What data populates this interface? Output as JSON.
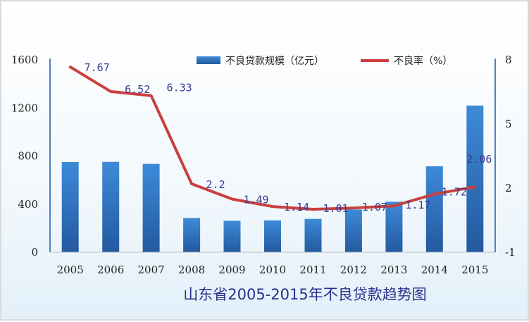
{
  "chart_data": {
    "type": "bar+line",
    "title": "山东省2005-2015年不良贷款趋势图",
    "categories": [
      "2005",
      "2006",
      "2007",
      "2008",
      "2009",
      "2010",
      "2011",
      "2012",
      "2013",
      "2014",
      "2015"
    ],
    "series": [
      {
        "name": "不良贷款规模（亿元）",
        "type": "bar",
        "axis": "left",
        "values": [
          750,
          752,
          735,
          285,
          262,
          265,
          277,
          355,
          420,
          715,
          1220
        ]
      },
      {
        "name": "不良率（%）",
        "type": "line",
        "axis": "right",
        "values": [
          7.67,
          6.52,
          6.33,
          2.2,
          1.49,
          1.14,
          1.01,
          1.07,
          1.17,
          1.72,
          2.06
        ]
      }
    ],
    "y_left": {
      "ylim": [
        0,
        1600
      ],
      "ticks": [
        "0",
        "400",
        "800",
        "1200",
        "1600"
      ]
    },
    "y_right": {
      "ylim": [
        -1,
        8
      ],
      "ticks": [
        "-1",
        "2",
        "5",
        "8"
      ]
    },
    "line_labels": [
      "7.67",
      "6.52",
      "6.33",
      "2.2",
      "1.49",
      "1.14",
      "1.01",
      "1.07",
      "1.17",
      "1.72",
      "2.06"
    ],
    "legend": "top",
    "colors": {
      "bar": "#2e75c3",
      "line": "#c9403f",
      "axis": "#4f81bd"
    }
  }
}
